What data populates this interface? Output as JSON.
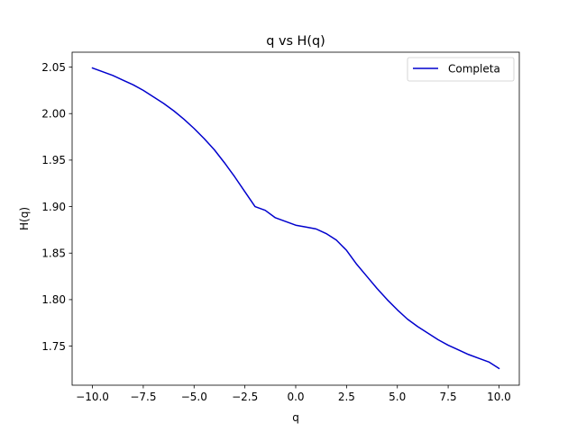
{
  "chart_data": {
    "type": "line",
    "title": "q vs H(q)",
    "xlabel": "q",
    "ylabel": "H(q)",
    "xlim": [
      -11.0,
      11.0
    ],
    "ylim": [
      1.708,
      2.066
    ],
    "grid": false,
    "legend_position": "top-right",
    "xticks": [
      -10.0,
      -7.5,
      -5.0,
      -2.5,
      0.0,
      2.5,
      5.0,
      7.5,
      10.0
    ],
    "xtick_labels": [
      "−10.0",
      "−7.5",
      "−5.0",
      "−2.5",
      "0.0",
      "2.5",
      "5.0",
      "7.5",
      "10.0"
    ],
    "yticks": [
      1.75,
      1.8,
      1.85,
      1.9,
      1.95,
      2.0,
      2.05
    ],
    "ytick_labels": [
      "1.75",
      "1.80",
      "1.85",
      "1.90",
      "1.95",
      "2.00",
      "2.05"
    ],
    "series": [
      {
        "name": "Completa",
        "color": "#0000cd",
        "x": [
          -10,
          -9.5,
          -9,
          -8.5,
          -8,
          -7.5,
          -7,
          -6.5,
          -6,
          -5.5,
          -5,
          -4.5,
          -4,
          -3.5,
          -3,
          -2.5,
          -2,
          -1.5,
          -1,
          -0.5,
          0,
          0.5,
          1,
          1.5,
          2,
          2.5,
          3,
          3.5,
          4,
          4.5,
          5,
          5.5,
          6,
          6.5,
          7,
          7.5,
          8,
          8.5,
          9,
          9.5,
          10
        ],
        "y": [
          2.049,
          2.045,
          2.041,
          2.036,
          2.031,
          2.025,
          2.018,
          2.011,
          2.003,
          1.994,
          1.984,
          1.973,
          1.961,
          1.947,
          1.932,
          1.916,
          1.9,
          1.896,
          1.888,
          1.884,
          1.88,
          1.878,
          1.876,
          1.871,
          1.864,
          1.853,
          1.838,
          1.825,
          1.812,
          1.8,
          1.789,
          1.779,
          1.771,
          1.764,
          1.757,
          1.751,
          1.746,
          1.741,
          1.737,
          1.733,
          1.726
        ]
      }
    ]
  }
}
